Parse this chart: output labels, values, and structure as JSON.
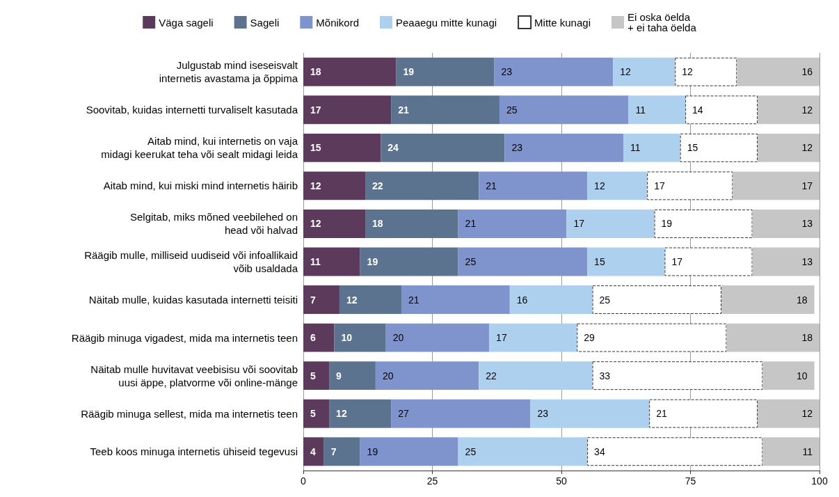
{
  "chart_data": {
    "type": "bar",
    "orientation": "horizontal",
    "stacked": true,
    "legend": "top",
    "grid": "x",
    "xlim": [
      0,
      100
    ],
    "xticks": [
      0,
      25,
      50,
      75,
      100
    ],
    "categories": [
      "Julgustab mind iseseisvalt\ninternetis avastama ja õppima",
      "Soovitab, kuidas internetti turvaliselt kasutada",
      "Aitab mind, kui internetis on vaja\nmidagi keerukat teha või sealt midagi leida",
      "Aitab mind, kui miski mind internetis häirib",
      "Selgitab, miks mõned veebilehed on\nhead või halvad",
      "Räägib mulle, milliseid uudiseid või infoallikaid\nvõib usaldada",
      "Näitab mulle, kuidas kasutada internetti teisiti",
      "Räägib minuga vigadest, mida ma internetis teen",
      "Näitab mulle huvitavat veebisisu või soovitab\nuusi äppe, platvorme või online-mänge",
      "Räägib minuga sellest, mida ma internetis teen",
      "Teeb koos minuga internetis ühiseid tegevusi"
    ],
    "series": [
      {
        "name": "Väga sageli",
        "color": "#5c3a5c",
        "values": [
          18,
          17,
          15,
          12,
          12,
          11,
          7,
          6,
          5,
          5,
          4
        ],
        "value_labels": [
          "18",
          "17",
          "15",
          "12",
          "12",
          "11",
          "7",
          "6",
          "5",
          "5",
          "4"
        ]
      },
      {
        "name": "Sageli",
        "color": "#5c7390",
        "values": [
          19,
          21,
          24,
          22,
          18,
          19,
          12,
          10,
          9,
          12,
          7
        ],
        "value_labels": [
          "19",
          "21",
          "24",
          "22",
          "18",
          "19",
          "12",
          "10",
          "9",
          "12",
          "7"
        ]
      },
      {
        "name": "Mõnikord",
        "color": "#7f94cc",
        "values": [
          23,
          25,
          23,
          21,
          21,
          25,
          21,
          20,
          20,
          27,
          19
        ],
        "value_labels": [
          "23",
          "25",
          "23",
          "21",
          "21",
          "25",
          "21",
          "20",
          "20",
          "27",
          "19"
        ]
      },
      {
        "name": "Peaaegu mitte kunagi",
        "color": "#aed0ef",
        "values": [
          12,
          11,
          11,
          11.6,
          17,
          15,
          16,
          17,
          22,
          23,
          25
        ],
        "value_labels": [
          "12",
          "11",
          "11",
          "12",
          "17",
          "15",
          "16",
          "17",
          "22",
          "23",
          "25"
        ]
      },
      {
        "name": "Mitte kunagi",
        "color": "#ffffff",
        "line_style": "dashed",
        "values": [
          12,
          14,
          15,
          16.6,
          19,
          17,
          25,
          29,
          33,
          21,
          34
        ],
        "value_labels": [
          "12",
          "14",
          "15",
          "17",
          "19",
          "17",
          "25",
          "29",
          "33",
          "21",
          "34"
        ]
      },
      {
        "name": "Ei oska öelda\n+ ei taha öelda",
        "color": "#c6c6c6",
        "values": [
          16,
          12,
          12,
          16.8,
          13,
          13,
          18,
          18,
          10,
          12,
          11
        ],
        "value_labels": [
          "16",
          "12",
          "12",
          "17",
          "13",
          "13",
          "18",
          "18",
          "10",
          "12",
          "11"
        ]
      }
    ]
  }
}
